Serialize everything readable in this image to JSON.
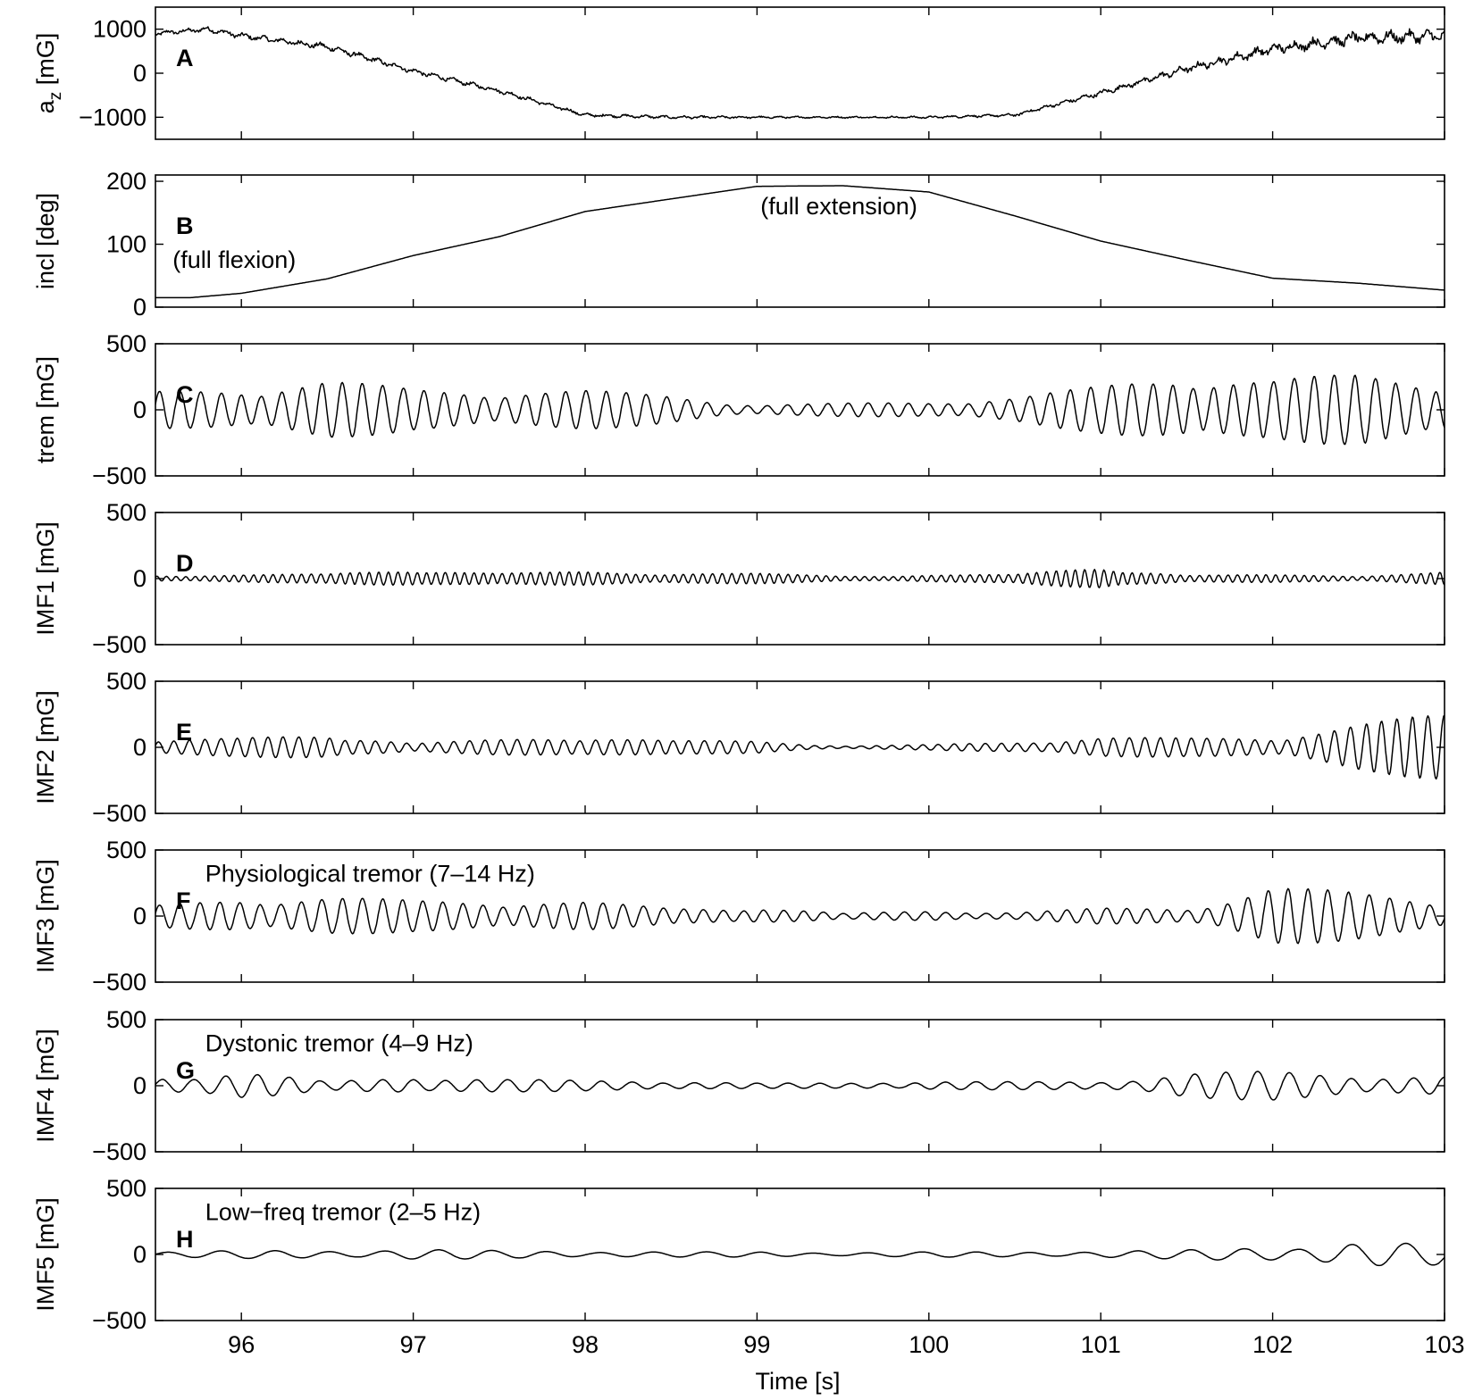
{
  "chart_data": {
    "type": "line",
    "xlabel": "Time [s]",
    "xlim": [
      95.5,
      103
    ],
    "xticks": [
      96,
      97,
      98,
      99,
      100,
      101,
      102,
      103
    ],
    "xtick_labels": [
      "96",
      "97",
      "98",
      "99",
      "100",
      "101",
      "102",
      "103"
    ],
    "panels": [
      {
        "id": "A",
        "letter": "A",
        "ylabel": "a_z [mG]",
        "ylabel_main": "a",
        "ylabel_sub": "z",
        "ylabel_rest": " [mG]",
        "ylim": [
          -1500,
          1500
        ],
        "yticks": [
          -1000,
          0,
          1000
        ],
        "ytick_labels": [
          "−1000",
          "0",
          "1000"
        ],
        "annotations": [],
        "series": [
          {
            "x": [
              95.5,
              95.8,
              96.0,
              96.5,
              97.0,
              97.5,
              98.0,
              98.5,
              99.0,
              99.5,
              100.0,
              100.5,
              101.0,
              101.5,
              102.0,
              102.5,
              103.0
            ],
            "y": [
              900,
              1000,
              850,
              600,
              50,
              -400,
              -950,
              -1000,
              -1000,
              -1000,
              -1000,
              -950,
              -450,
              100,
              550,
              800,
              850
            ],
            "noise": [
              60,
              70,
              80,
              90,
              70,
              60,
              50,
              40,
              30,
              25,
              30,
              40,
              70,
              110,
              150,
              180,
              180
            ]
          }
        ]
      },
      {
        "id": "B",
        "letter": "B",
        "ylabel": "incl [deg]",
        "ylim": [
          0,
          210
        ],
        "yticks": [
          0,
          100,
          200
        ],
        "ytick_labels": [
          "0",
          "100",
          "200"
        ],
        "annotations": [
          {
            "text": "(full flexion)",
            "x": 95.6,
            "y": 75
          },
          {
            "text": "(full extension)",
            "x": 99.02,
            "y": 160
          }
        ],
        "series": [
          {
            "x": [
              95.5,
              95.7,
              96.0,
              96.5,
              97.0,
              97.5,
              98.0,
              98.5,
              99.0,
              99.5,
              100.0,
              100.5,
              101.0,
              101.5,
              102.0,
              102.5,
              103.0
            ],
            "y": [
              15,
              15,
              22,
              45,
              82,
              112,
              152,
              172,
              192,
              193,
              183,
              145,
              105,
              75,
              46,
              38,
              27
            ],
            "noise": [
              0,
              0,
              0,
              0,
              0,
              0,
              0,
              0,
              0,
              0,
              0,
              0,
              0,
              0,
              0,
              0,
              0
            ]
          }
        ]
      },
      {
        "id": "C",
        "letter": "C",
        "ylabel": "trem [mG]",
        "ylim": [
          -500,
          500
        ],
        "yticks": [
          -500,
          0,
          500
        ],
        "ytick_labels": [
          "−500",
          "0",
          "500"
        ],
        "annotations": [],
        "series": [
          {
            "x": [
              95.5,
              96.0,
              96.5,
              97.0,
              97.5,
              98.0,
              98.5,
              99.0,
              99.5,
              100.0,
              100.5,
              101.0,
              101.5,
              102.0,
              102.5,
              103.0
            ],
            "y": [
              0,
              0,
              0,
              0,
              0,
              0,
              0,
              0,
              0,
              0,
              0,
              0,
              0,
              0,
              0,
              0
            ],
            "amplitude": [
              140,
              170,
              230,
              160,
              150,
              150,
              110,
              40,
              50,
              60,
              100,
              180,
              280,
              230,
              280,
              240
            ]
          }
        ]
      },
      {
        "id": "D",
        "letter": "D",
        "ylabel": "IMF1 [mG]",
        "ylim": [
          -500,
          500
        ],
        "yticks": [
          -500,
          0,
          500
        ],
        "ytick_labels": [
          "−500",
          "0",
          "500"
        ],
        "annotations": [],
        "series": [
          {
            "x": [
              95.5,
              96.0,
              96.5,
              97.0,
              97.5,
              98.0,
              98.5,
              99.0,
              99.5,
              100.0,
              100.5,
              101.0,
              101.5,
              102.0,
              102.5,
              103.0
            ],
            "y": [
              0,
              0,
              0,
              0,
              0,
              0,
              0,
              0,
              0,
              0,
              0,
              0,
              0,
              0,
              0,
              0
            ],
            "amplitude": [
              25,
              30,
              35,
              80,
              40,
              55,
              45,
              40,
              20,
              30,
              30,
              100,
              25,
              30,
              25,
              50
            ]
          }
        ]
      },
      {
        "id": "E",
        "letter": "E",
        "ylabel": "IMF2 [mG]",
        "ylim": [
          -500,
          500
        ],
        "yticks": [
          -500,
          0,
          500
        ],
        "ytick_labels": [
          "−500",
          "0",
          "500"
        ],
        "annotations": [],
        "series": [
          {
            "x": [
              95.5,
              96.0,
              96.5,
              97.0,
              97.5,
              98.0,
              98.5,
              99.0,
              99.5,
              100.0,
              100.5,
              101.0,
              101.5,
              102.0,
              102.5,
              103.0
            ],
            "y": [
              0,
              0,
              0,
              0,
              0,
              0,
              0,
              0,
              0,
              0,
              0,
              0,
              0,
              0,
              0,
              0
            ],
            "amplitude": [
              50,
              70,
              110,
              30,
              60,
              90,
              50,
              50,
              10,
              20,
              40,
              80,
              70,
              80,
              180,
              260
            ]
          }
        ]
      },
      {
        "id": "F",
        "letter": "F",
        "ylabel": "IMF3 [mG]",
        "ylim": [
          -500,
          500
        ],
        "yticks": [
          -500,
          0,
          500
        ],
        "ytick_labels": [
          "−500",
          "0",
          "500"
        ],
        "annotations": [
          {
            "text": "Physiological tremor (7–14 Hz)",
            "x": 95.79,
            "y": 320
          }
        ],
        "series": [
          {
            "x": [
              95.5,
              96.0,
              96.5,
              97.0,
              97.5,
              98.0,
              98.5,
              99.0,
              99.5,
              100.0,
              100.5,
              101.0,
              101.5,
              102.0,
              102.5,
              103.0
            ],
            "y": [
              0,
              0,
              0,
              0,
              0,
              0,
              0,
              0,
              0,
              0,
              0,
              0,
              0,
              0,
              0,
              0
            ],
            "amplitude": [
              80,
              140,
              150,
              120,
              120,
              110,
              60,
              70,
              20,
              40,
              30,
              60,
              60,
              230,
              180,
              120
            ]
          }
        ]
      },
      {
        "id": "G",
        "letter": "G",
        "ylabel": "IMF4 [mG]",
        "ylim": [
          -500,
          500
        ],
        "yticks": [
          -500,
          0,
          500
        ],
        "ytick_labels": [
          "−500",
          "0",
          "500"
        ],
        "annotations": [
          {
            "text": "Dystonic tremor (4–9 Hz)",
            "x": 95.79,
            "y": 320
          }
        ],
        "series": [
          {
            "x": [
              95.5,
              96.0,
              96.5,
              97.0,
              97.5,
              98.0,
              98.5,
              99.0,
              99.5,
              100.0,
              100.5,
              101.0,
              101.5,
              102.0,
              102.5,
              103.0
            ],
            "y": [
              0,
              0,
              0,
              0,
              0,
              0,
              0,
              0,
              0,
              0,
              0,
              0,
              0,
              0,
              0,
              0
            ],
            "amplitude": [
              60,
              110,
              30,
              70,
              50,
              40,
              35,
              20,
              20,
              35,
              30,
              30,
              100,
              110,
              80,
              70
            ]
          }
        ]
      },
      {
        "id": "H",
        "letter": "H",
        "ylabel": "IMF5 [mG]",
        "ylim": [
          -500,
          500
        ],
        "yticks": [
          -500,
          0,
          500
        ],
        "ytick_labels": [
          "−500",
          "0",
          "500"
        ],
        "annotations": [
          {
            "text": "Low−freq tremor (2–5 Hz)",
            "x": 95.79,
            "y": 320
          }
        ],
        "series": [
          {
            "x": [
              95.5,
              96.0,
              96.5,
              97.0,
              97.5,
              98.0,
              98.5,
              99.0,
              99.5,
              100.0,
              100.5,
              101.0,
              101.5,
              102.0,
              102.5,
              103.0
            ],
            "y": [
              0,
              0,
              0,
              0,
              0,
              0,
              0,
              0,
              0,
              0,
              0,
              0,
              0,
              0,
              0,
              0
            ],
            "amplitude": [
              20,
              30,
              30,
              40,
              30,
              25,
              20,
              20,
              15,
              20,
              20,
              25,
              35,
              60,
              90,
              80
            ]
          }
        ]
      }
    ]
  }
}
